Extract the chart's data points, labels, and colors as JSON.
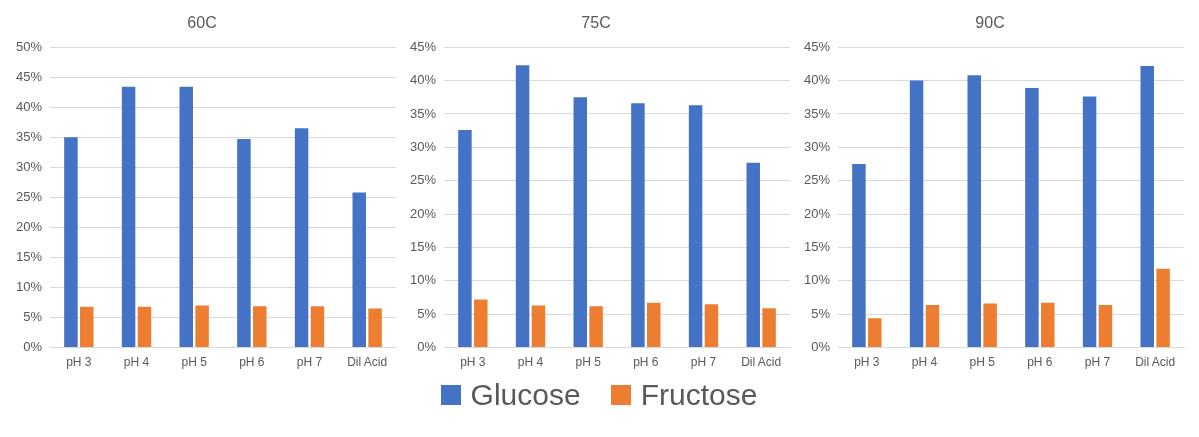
{
  "chart_data": [
    {
      "type": "bar",
      "title": "60C",
      "categories": [
        "pH 3",
        "pH 4",
        "pH 5",
        "pH 6",
        "pH 7",
        "Dil Acid"
      ],
      "series": [
        {
          "color": "#4472c4",
          "values": [
            35.0,
            43.4,
            43.4,
            34.7,
            36.5,
            25.8
          ]
        },
        {
          "color": "#ed7d31",
          "values": [
            6.8,
            6.8,
            7.0,
            6.9,
            6.9,
            6.5
          ]
        }
      ],
      "ylim": [
        0,
        50
      ],
      "yticks": [
        {
          "value": 0,
          "label": "0%"
        },
        {
          "value": 5,
          "label": "5%"
        },
        {
          "value": 10,
          "label": "10%"
        },
        {
          "value": 15,
          "label": "15%"
        },
        {
          "value": 20,
          "label": "20%"
        },
        {
          "value": 25,
          "label": "25%"
        },
        {
          "value": 30,
          "label": "30%"
        },
        {
          "value": 35,
          "label": "35%"
        },
        {
          "value": 40,
          "label": "40%"
        },
        {
          "value": 45,
          "label": "45%"
        },
        {
          "value": 50,
          "label": "50%"
        }
      ],
      "grid": "y"
    },
    {
      "type": "bar",
      "title": "75C",
      "categories": [
        "pH 3",
        "pH 4",
        "pH 5",
        "pH 6",
        "pH 7",
        "Dil Acid"
      ],
      "series": [
        {
          "name": "Glucose",
          "color": "#4472c4",
          "values": [
            32.6,
            42.3,
            37.5,
            36.6,
            36.3,
            27.7
          ]
        },
        {
          "name": "Fructose",
          "color": "#ed7d31",
          "values": [
            7.2,
            6.3,
            6.2,
            6.7,
            6.5,
            5.9
          ]
        }
      ],
      "ylim": [
        0,
        45
      ],
      "yticks": [
        {
          "value": 0,
          "label": "0%"
        },
        {
          "value": 5,
          "label": "5%"
        },
        {
          "value": 10,
          "label": "10%"
        },
        {
          "value": 15,
          "label": "15%"
        },
        {
          "value": 20,
          "label": "20%"
        },
        {
          "value": 25,
          "label": "25%"
        },
        {
          "value": 30,
          "label": "30%"
        },
        {
          "value": 35,
          "label": "35%"
        },
        {
          "value": 40,
          "label": "40%"
        },
        {
          "value": 45,
          "label": "45%"
        }
      ],
      "grid": "y",
      "legend": "bottom"
    },
    {
      "type": "bar",
      "title": "90C",
      "categories": [
        "pH 3",
        "pH 4",
        "pH 5",
        "pH 6",
        "pH 7",
        "Dil Acid"
      ],
      "series": [
        {
          "color": "#4472c4",
          "values": [
            27.5,
            40.0,
            40.8,
            38.9,
            37.6,
            42.2
          ]
        },
        {
          "color": "#ed7d31",
          "values": [
            4.4,
            6.4,
            6.6,
            6.7,
            6.4,
            11.8
          ]
        }
      ],
      "ylim": [
        0,
        45
      ],
      "yticks": [
        {
          "value": 0,
          "label": "0%"
        },
        {
          "value": 5,
          "label": "5%"
        },
        {
          "value": 10,
          "label": "10%"
        },
        {
          "value": 15,
          "label": "15%"
        },
        {
          "value": 20,
          "label": "20%"
        },
        {
          "value": 25,
          "label": "25%"
        },
        {
          "value": 30,
          "label": "30%"
        },
        {
          "value": 35,
          "label": "35%"
        },
        {
          "value": 40,
          "label": "40%"
        },
        {
          "value": 45,
          "label": "45%"
        }
      ],
      "grid": "y"
    }
  ]
}
